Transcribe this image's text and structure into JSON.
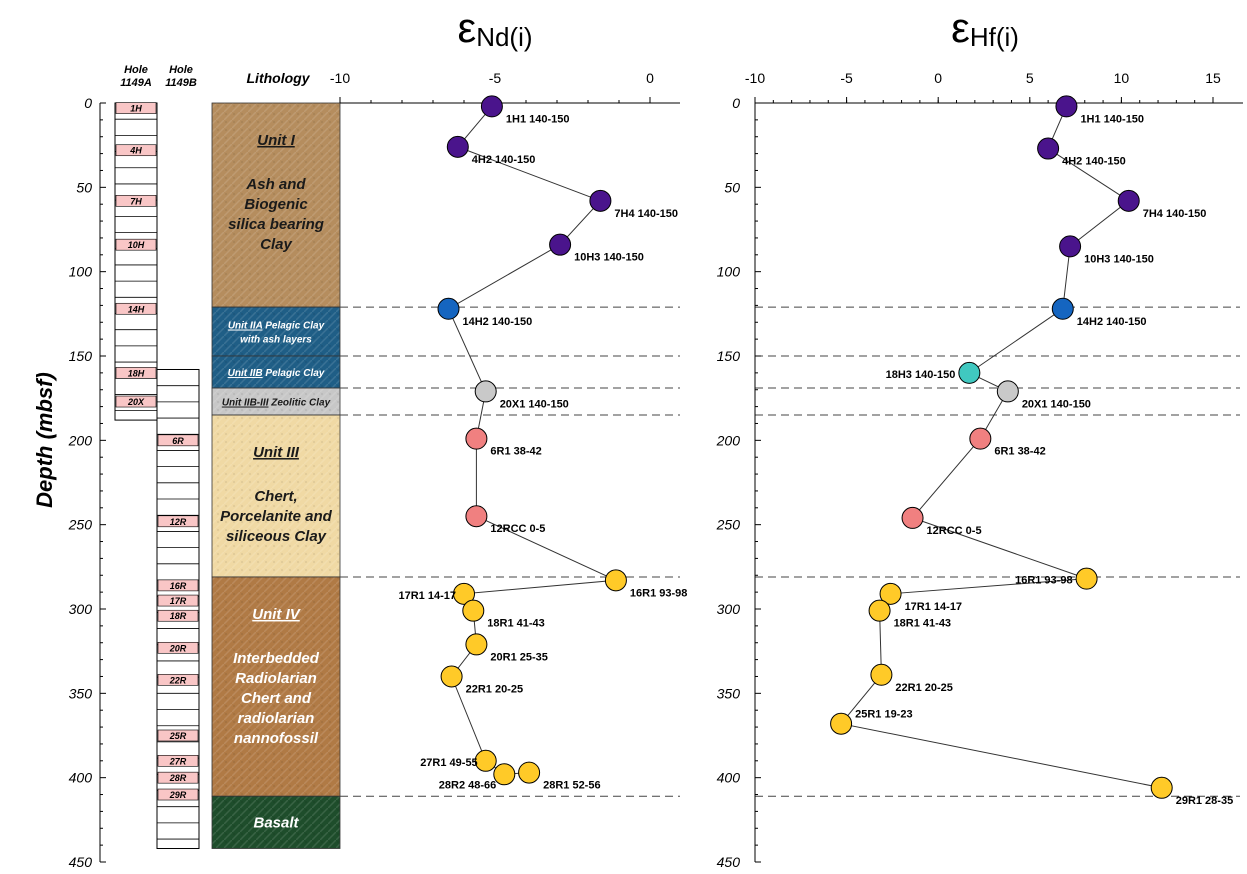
{
  "ylabel": "Depth (mbsf)",
  "y_ticks": [
    "0",
    "50",
    "100",
    "150",
    "200",
    "250",
    "300",
    "350",
    "400",
    "450"
  ],
  "columns": {
    "hole_a": {
      "line1": "Hole",
      "line2": "1149A"
    },
    "hole_b": {
      "line1": "Hole",
      "line2": "1149B"
    },
    "lithology": "Lithology"
  },
  "hole_a_cores": [
    {
      "label": "1H",
      "depth": 3
    },
    {
      "label": "4H",
      "depth": 28
    },
    {
      "label": "7H",
      "depth": 58
    },
    {
      "label": "10H",
      "depth": 84
    },
    {
      "label": "14H",
      "depth": 122
    },
    {
      "label": "18H",
      "depth": 160
    },
    {
      "label": "20X",
      "depth": 177
    }
  ],
  "hole_b_cores": [
    {
      "label": "6R",
      "depth": 200
    },
    {
      "label": "12R",
      "depth": 248
    },
    {
      "label": "16R",
      "depth": 286
    },
    {
      "label": "17R",
      "depth": 295
    },
    {
      "label": "18R",
      "depth": 304
    },
    {
      "label": "20R",
      "depth": 323
    },
    {
      "label": "22R",
      "depth": 342
    },
    {
      "label": "25R",
      "depth": 375
    },
    {
      "label": "27R",
      "depth": 390
    },
    {
      "label": "28R",
      "depth": 400
    },
    {
      "label": "29R",
      "depth": 410
    }
  ],
  "lithology_units": [
    {
      "top": 0,
      "bottom": 121,
      "color": "#b58d5e",
      "title": "Unit I",
      "desc": [
        "Ash and",
        "Biogenic",
        "silica bearing",
        "Clay"
      ],
      "text_color": "#1a1a1a"
    },
    {
      "top": 121,
      "bottom": 150,
      "color": "#1f5e86",
      "title": "Unit IIA",
      "desc_inline": "Pelagic Clay",
      "desc": [
        "with ash layers"
      ],
      "text_color": "#ffffff"
    },
    {
      "top": 150,
      "bottom": 169,
      "color": "#1f5e86",
      "title": "Unit IIB",
      "desc_inline": "Pelagic Clay",
      "desc": [],
      "text_color": "#ffffff"
    },
    {
      "top": 169,
      "bottom": 185,
      "color": "#c7c7c7",
      "title": "Unit IIB-III",
      "desc_inline": "Zeolitic Clay",
      "desc": [],
      "text_color": "#1a1a1a"
    },
    {
      "top": 185,
      "bottom": 281,
      "color": "#f0d9a4",
      "title": "Unit III",
      "desc": [
        "Chert,",
        "Porcelanite and",
        "siliceous Clay"
      ],
      "text_color": "#1a1a1a"
    },
    {
      "top": 281,
      "bottom": 411,
      "color": "#b07a45",
      "title": "Unit IV",
      "desc": [
        "Interbedded",
        "Radiolarian",
        "Chert and",
        "radiolarian",
        "nannofossil"
      ],
      "text_color": "#ffffff"
    },
    {
      "top": 411,
      "bottom": 442,
      "color": "#1e4d2b",
      "title": "",
      "desc": [
        "Basalt"
      ],
      "text_color": "#ffffff"
    }
  ],
  "boundaries": [
    121,
    150,
    169,
    185,
    281,
    411
  ],
  "chart_data": [
    {
      "type": "scatter",
      "title": "εNd(i)",
      "title_main": "ε",
      "title_sub": "Nd(i)",
      "xlim": [
        -10,
        0
      ],
      "x_ticks": [
        "-10",
        "-5",
        "0"
      ],
      "ylim": [
        0,
        450
      ],
      "y_inverted": true,
      "points": [
        {
          "label": "1H1 140-150",
          "x": -5.1,
          "y": 2,
          "color": "#4a148c"
        },
        {
          "label": "4H2 140-150",
          "x": -6.2,
          "y": 26,
          "color": "#4a148c"
        },
        {
          "label": "7H4 140-150",
          "x": -1.6,
          "y": 58,
          "color": "#4a148c"
        },
        {
          "label": "10H3 140-150",
          "x": -2.9,
          "y": 84,
          "color": "#4a148c"
        },
        {
          "label": "14H2 140-150",
          "x": -6.5,
          "y": 122,
          "color": "#1565c0"
        },
        {
          "label": "20X1 140-150",
          "x": -5.3,
          "y": 171,
          "color": "#c9c9c9"
        },
        {
          "label": "6R1 38-42",
          "x": -5.6,
          "y": 199,
          "color": "#f08080"
        },
        {
          "label": "12RCC 0-5",
          "x": -5.6,
          "y": 245,
          "color": "#f08080"
        },
        {
          "label": "16R1 93-98",
          "x": -1.1,
          "y": 283,
          "color": "#ffca28"
        },
        {
          "label": "17R1 14-17",
          "x": -6.0,
          "y": 291,
          "color": "#ffca28"
        },
        {
          "label": "18R1 41-43",
          "x": -5.7,
          "y": 301,
          "color": "#ffca28"
        },
        {
          "label": "20R1 25-35",
          "x": -5.6,
          "y": 321,
          "color": "#ffca28"
        },
        {
          "label": "22R1 20-25",
          "x": -6.4,
          "y": 340,
          "color": "#ffca28"
        },
        {
          "label": "27R1 49-55",
          "x": -5.3,
          "y": 390,
          "color": "#ffca28"
        },
        {
          "label": "28R2 48-66",
          "x": -4.7,
          "y": 398,
          "color": "#ffca28"
        },
        {
          "label": "28R1 52-56",
          "x": -3.9,
          "y": 397,
          "color": "#ffca28"
        }
      ]
    },
    {
      "type": "scatter",
      "title": "εHf(i)",
      "title_main": "ε",
      "title_sub": "Hf(i)",
      "xlim": [
        -10,
        15
      ],
      "x_ticks": [
        "-10",
        "-5",
        "0",
        "5",
        "10",
        "15"
      ],
      "ylim": [
        0,
        450
      ],
      "y_inverted": true,
      "points": [
        {
          "label": "1H1 140-150",
          "x": 7.0,
          "y": 2,
          "color": "#4a148c"
        },
        {
          "label": "4H2 140-150",
          "x": 6.0,
          "y": 27,
          "color": "#4a148c"
        },
        {
          "label": "7H4 140-150",
          "x": 10.4,
          "y": 58,
          "color": "#4a148c"
        },
        {
          "label": "10H3 140-150",
          "x": 7.2,
          "y": 85,
          "color": "#4a148c"
        },
        {
          "label": "14H2 140-150",
          "x": 6.8,
          "y": 122,
          "color": "#1565c0"
        },
        {
          "label": "18H3 140-150",
          "x": 1.7,
          "y": 160,
          "color": "#40c8c0"
        },
        {
          "label": "20X1 140-150",
          "x": 3.8,
          "y": 171,
          "color": "#c9c9c9"
        },
        {
          "label": "6R1 38-42",
          "x": 2.3,
          "y": 199,
          "color": "#f08080"
        },
        {
          "label": "12RCC 0-5",
          "x": -1.4,
          "y": 246,
          "color": "#f08080"
        },
        {
          "label": "16R1 93-98",
          "x": 8.1,
          "y": 282,
          "color": "#ffca28"
        },
        {
          "label": "17R1 14-17",
          "x": -2.6,
          "y": 291,
          "color": "#ffca28"
        },
        {
          "label": "18R1 41-43",
          "x": -3.2,
          "y": 301,
          "color": "#ffca28"
        },
        {
          "label": "22R1 20-25",
          "x": -3.1,
          "y": 339,
          "color": "#ffca28"
        },
        {
          "label": "25R1 19-23",
          "x": -5.3,
          "y": 368,
          "color": "#ffca28"
        },
        {
          "label": "29R1 28-35",
          "x": 12.2,
          "y": 406,
          "color": "#ffca28"
        }
      ],
      "line_order": [
        0,
        1,
        2,
        3,
        4,
        5,
        6,
        7,
        8,
        9,
        10,
        11,
        12,
        13,
        14
      ]
    }
  ]
}
